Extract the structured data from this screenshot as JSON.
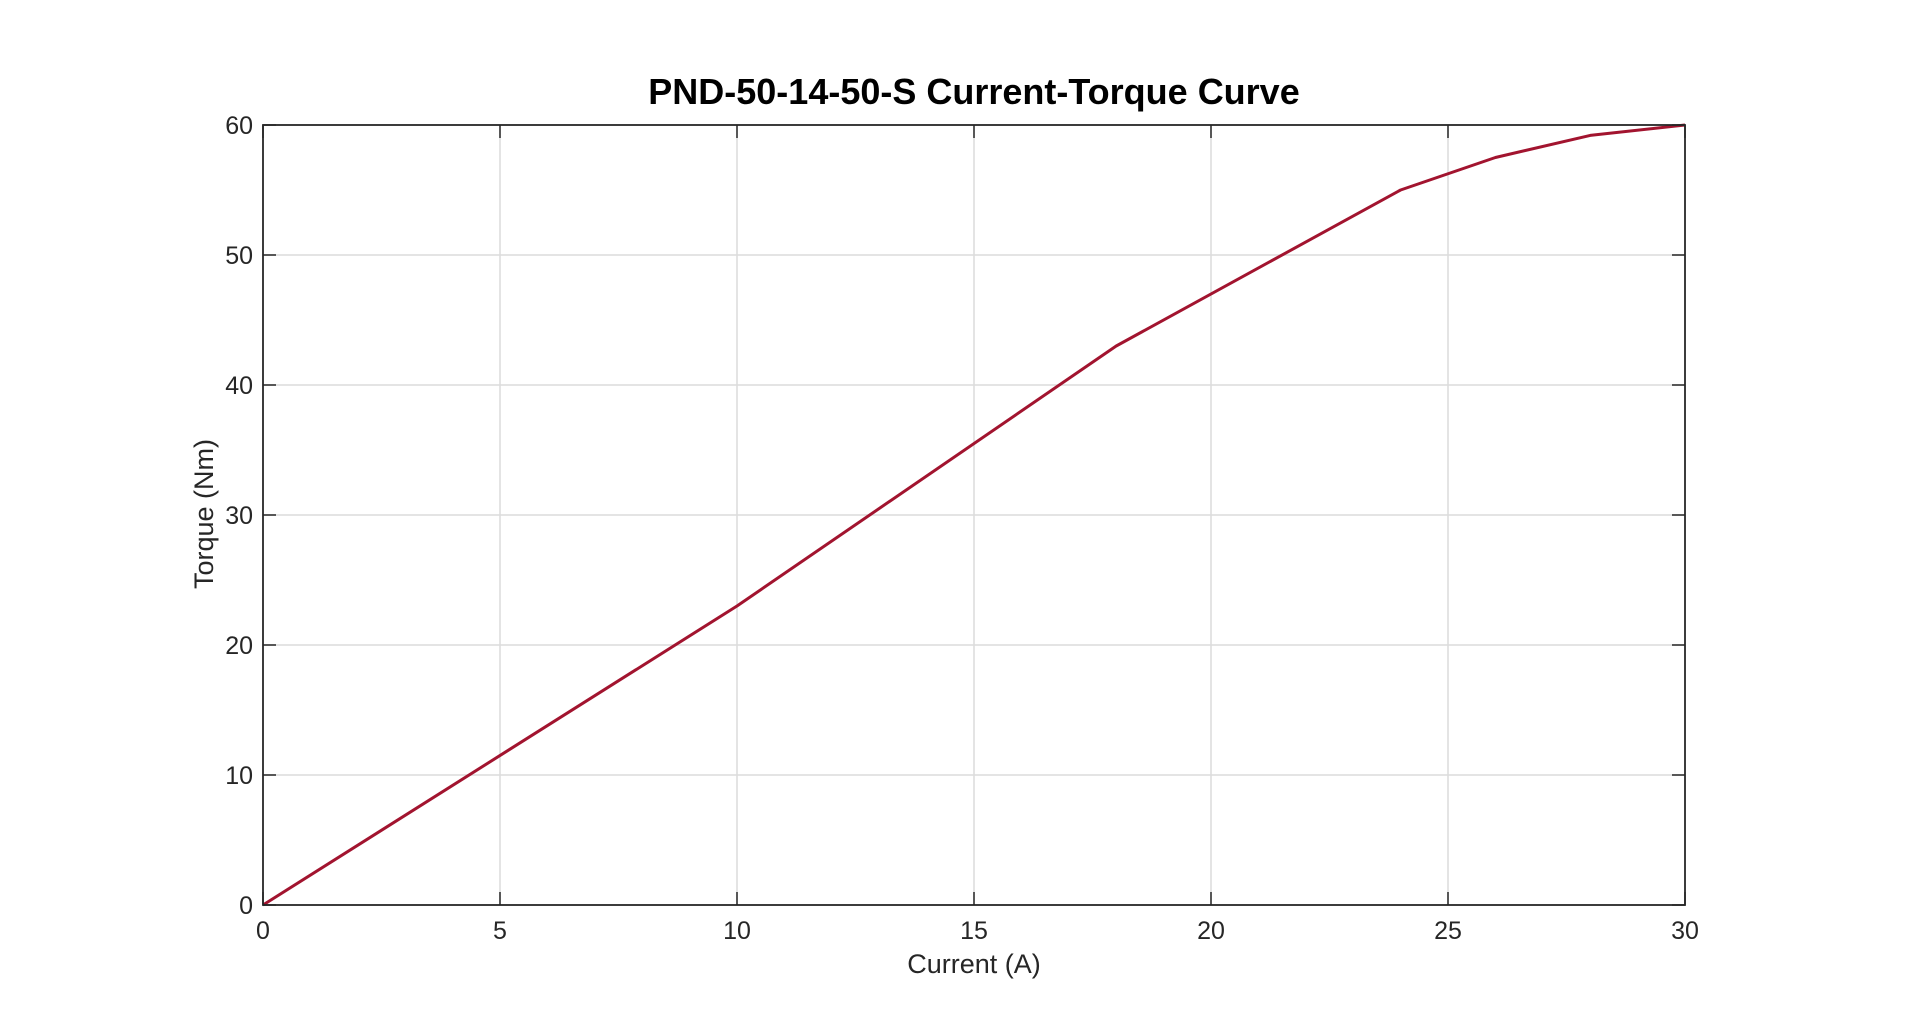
{
  "chart_data": {
    "type": "line",
    "title": "PND-50-14-50-S Current-Torque Curve",
    "xlabel": "Current (A)",
    "ylabel": "Torque (Nm)",
    "xlim": [
      0,
      30
    ],
    "ylim": [
      0,
      60
    ],
    "xticks": [
      0,
      5,
      10,
      15,
      20,
      25,
      30
    ],
    "yticks": [
      0,
      10,
      20,
      30,
      40,
      50,
      60
    ],
    "grid": true,
    "series": [
      {
        "color": "#a2142f",
        "x": [
          0,
          10,
          18,
          24,
          26,
          28,
          30
        ],
        "y": [
          0,
          23,
          43,
          55,
          57.5,
          59.2,
          60
        ]
      }
    ]
  }
}
